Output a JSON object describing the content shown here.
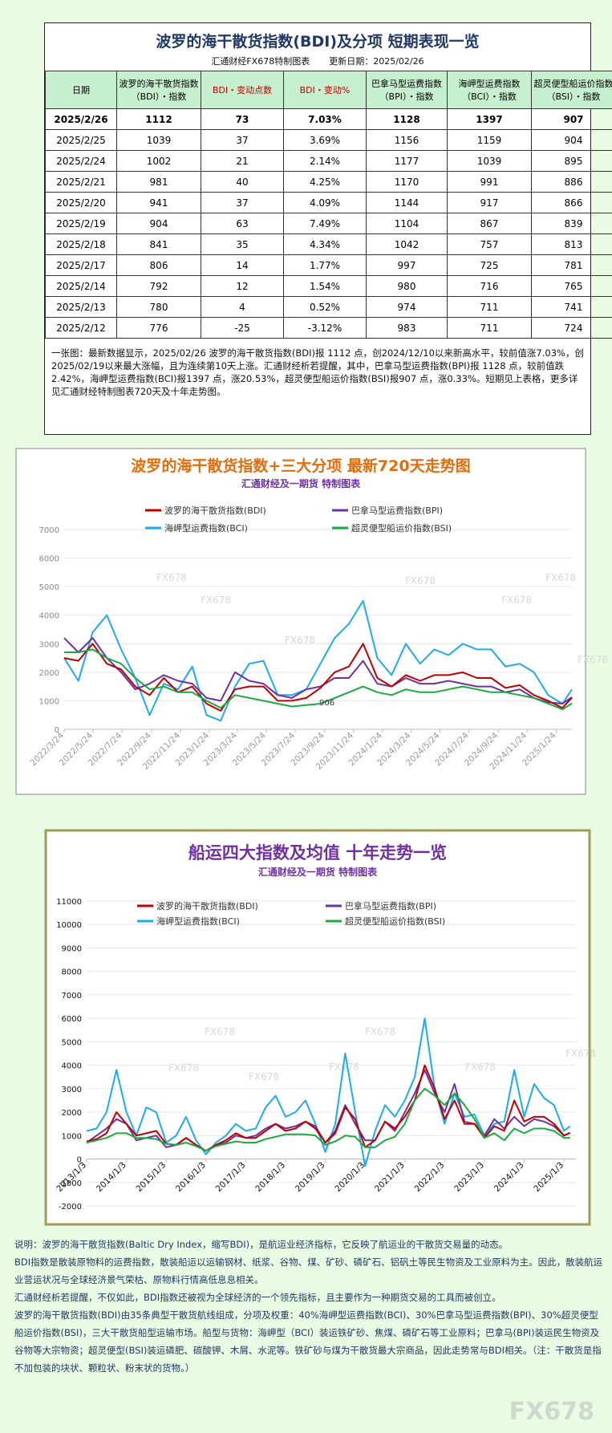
{
  "header": {
    "title": "波罗的海干散货指数(BDI)及分项  短期表现一览",
    "source": "汇通财经FX678特制图表",
    "updated": "更新日期：2025/02/26"
  },
  "table": {
    "header": [
      "日期",
      "波罗的海干散货指数（BDI）・指数",
      "BDI・变动点数",
      "BDI・变动%",
      "巴拿马型运费指数（BPI）・指数",
      "海岬型运费指数（BCI）・指数",
      "超灵便型船运价指数（BSI）・指数"
    ],
    "rows": [
      [
        "2025/2/26",
        "1112",
        "73",
        "7.03%",
        "1128",
        "1397",
        "907"
      ],
      [
        "2025/2/25",
        "1039",
        "37",
        "3.69%",
        "1156",
        "1159",
        "904"
      ],
      [
        "2025/2/24",
        "1002",
        "21",
        "2.14%",
        "1177",
        "1039",
        "895"
      ],
      [
        "2025/2/21",
        "981",
        "40",
        "4.25%",
        "1170",
        "991",
        "886"
      ],
      [
        "2025/2/20",
        "941",
        "37",
        "4.09%",
        "1144",
        "917",
        "866"
      ],
      [
        "2025/2/19",
        "904",
        "63",
        "7.49%",
        "1104",
        "867",
        "839"
      ],
      [
        "2025/2/18",
        "841",
        "35",
        "4.34%",
        "1042",
        "757",
        "813"
      ],
      [
        "2025/2/17",
        "806",
        "14",
        "1.77%",
        "997",
        "725",
        "781"
      ],
      [
        "2025/2/14",
        "792",
        "12",
        "1.54%",
        "980",
        "716",
        "765"
      ],
      [
        "2025/2/13",
        "780",
        "4",
        "0.52%",
        "974",
        "711",
        "741"
      ],
      [
        "2025/2/12",
        "776",
        "-25",
        "-3.12%",
        "983",
        "711",
        "724"
      ]
    ]
  },
  "summary": "一张图：最新数据显示，2025/02/26 波罗的海干散货指数(BDI)报 1112 点，创2024/12/10以来新高水平，较前值涨7.03%，创2025/02/19以来最大涨幅，且为连续第10天上涨。汇通财经析若提醒，其中，巴拿马型运费指数(BPI)报 1128 点，较前值跌2.42%，海岬型运费指数(BCI)报1397 点，涨20.53%，超灵便型船运价指数(BSI)报907 点，涨0.33%。短期见上表格，更多详见汇通财经特制图表720天及十年走势图。",
  "chart_data": [
    {
      "type": "line",
      "title": "波罗的海干散货指数+三大分项  最新720天走势图",
      "subtitle": "汇通财经及一期货  特制图表",
      "annotation": "906",
      "watermarks": [
        "FX678",
        "FX678",
        "FX678",
        "FX678",
        "FX678",
        "FX678",
        "FX678"
      ],
      "x": [
        0,
        30,
        60,
        90,
        120,
        150,
        180,
        210,
        240,
        270,
        300,
        330,
        360,
        390,
        420,
        450,
        480,
        510,
        540,
        570,
        600,
        630,
        660,
        690,
        720,
        750,
        780,
        810,
        840,
        870,
        900,
        930,
        960,
        990,
        1020,
        1050,
        1070
      ],
      "xlim": [
        0,
        1070
      ],
      "xticks": [
        {
          "value": 0,
          "label": "2022/3/24"
        },
        {
          "value": 61,
          "label": "2022/5/24"
        },
        {
          "value": 122,
          "label": "2022/7/24"
        },
        {
          "value": 184,
          "label": "2022/9/24"
        },
        {
          "value": 245,
          "label": "2022/11/24"
        },
        {
          "value": 306,
          "label": "2023/1/24"
        },
        {
          "value": 365,
          "label": "2023/3/24"
        },
        {
          "value": 426,
          "label": "2023/5/24"
        },
        {
          "value": 487,
          "label": "2023/7/24"
        },
        {
          "value": 549,
          "label": "2023/9/24"
        },
        {
          "value": 610,
          "label": "2023/11/24"
        },
        {
          "value": 671,
          "label": "2024/1/24"
        },
        {
          "value": 731,
          "label": "2024/3/24"
        },
        {
          "value": 792,
          "label": "2024/5/24"
        },
        {
          "value": 853,
          "label": "2024/7/24"
        },
        {
          "value": 915,
          "label": "2024/9/24"
        },
        {
          "value": 976,
          "label": "2024/11/24"
        },
        {
          "value": 1037,
          "label": "2025/1/24"
        }
      ],
      "ylim": [
        0,
        7000
      ],
      "yticks": [
        0,
        1000,
        2000,
        3000,
        4000,
        5000,
        6000,
        7000
      ],
      "grid": true,
      "series": [
        {
          "name": "波罗的海干散货指数(BDI)",
          "color": "#c00000",
          "values": [
            2500,
            2400,
            3000,
            2300,
            2100,
            1500,
            1200,
            1800,
            1300,
            1500,
            900,
            650,
            1400,
            1500,
            1500,
            1000,
            1000,
            1100,
            1450,
            2000,
            2200,
            3000,
            1800,
            1500,
            1900,
            1700,
            1900,
            1900,
            2000,
            1800,
            1800,
            1450,
            1550,
            1200,
            1000,
            750,
            1112
          ]
        },
        {
          "name": "巴拿马型运费指数(BPI)",
          "color": "#7030a0",
          "values": [
            3200,
            2700,
            3200,
            2500,
            2000,
            1400,
            1600,
            1900,
            1700,
            1600,
            1100,
            1000,
            2000,
            1700,
            1600,
            1200,
            1100,
            1400,
            1500,
            1800,
            1800,
            2400,
            1600,
            1500,
            1800,
            1600,
            1600,
            1700,
            1600,
            1500,
            1500,
            1300,
            1400,
            1100,
            950,
            900,
            1128
          ]
        },
        {
          "name": "海岬型运费指数(BCI)",
          "color": "#1eaaf0",
          "values": [
            2500,
            1700,
            3400,
            4000,
            2800,
            1800,
            500,
            1600,
            1400,
            2200,
            500,
            300,
            1500,
            2300,
            2400,
            1200,
            1200,
            1400,
            2300,
            3200,
            3700,
            4500,
            2500,
            1900,
            3000,
            2300,
            2800,
            2600,
            3000,
            2800,
            2800,
            2200,
            2300,
            2000,
            1200,
            900,
            1397
          ]
        },
        {
          "name": "超灵便型船运价指数(BSI)",
          "color": "#1aab40",
          "values": [
            2700,
            2700,
            2800,
            2500,
            2300,
            1800,
            1400,
            1500,
            1300,
            1300,
            1000,
            750,
            1200,
            1100,
            1000,
            900,
            800,
            850,
            900,
            1100,
            1300,
            1500,
            1300,
            1200,
            1400,
            1300,
            1300,
            1400,
            1500,
            1400,
            1300,
            1300,
            1200,
            1100,
            900,
            700,
            907
          ]
        }
      ]
    },
    {
      "type": "line",
      "title": "船运四大指数及均值 十年走势一览",
      "subtitle": "汇通财经及一期货 特制图表",
      "watermarks": [
        "FX678",
        "FX678",
        "FX678",
        "FX678",
        "FX678",
        "FX678",
        "FX678"
      ],
      "x": [
        2013,
        2013.25,
        2013.5,
        2013.75,
        2014,
        2014.25,
        2014.5,
        2014.75,
        2015,
        2015.25,
        2015.5,
        2015.75,
        2016,
        2016.25,
        2016.5,
        2016.75,
        2017,
        2017.25,
        2017.5,
        2017.75,
        2018,
        2018.25,
        2018.5,
        2018.75,
        2019,
        2019.25,
        2019.5,
        2019.75,
        2020,
        2020.25,
        2020.5,
        2020.75,
        2021,
        2021.25,
        2021.5,
        2021.75,
        2022,
        2022.25,
        2022.5,
        2022.75,
        2023,
        2023.25,
        2023.5,
        2023.75,
        2024,
        2024.25,
        2024.5,
        2024.75,
        2025,
        2025.15
      ],
      "xlim": [
        2013,
        2025.3
      ],
      "xticks": [
        {
          "value": 2013,
          "label": "2013/1/3"
        },
        {
          "value": 2014,
          "label": "2014/1/3"
        },
        {
          "value": 2015,
          "label": "2015/1/3"
        },
        {
          "value": 2016,
          "label": "2016/1/3"
        },
        {
          "value": 2017,
          "label": "2017/1/3"
        },
        {
          "value": 2018,
          "label": "2018/1/3"
        },
        {
          "value": 2019,
          "label": "2019/1/3"
        },
        {
          "value": 2020,
          "label": "2020/1/3"
        },
        {
          "value": 2021,
          "label": "2021/1/3"
        },
        {
          "value": 2022,
          "label": "2022/1/3"
        },
        {
          "value": 2023,
          "label": "2023/1/3"
        },
        {
          "value": 2024,
          "label": "2024/1/3"
        },
        {
          "value": 2025,
          "label": "2025/1/3"
        }
      ],
      "ylim": [
        -2000,
        11000
      ],
      "yticks": [
        -2000,
        -1000,
        0,
        1000,
        2000,
        3000,
        4000,
        5000,
        6000,
        7000,
        8000,
        9000,
        10000,
        11000
      ],
      "grid": true,
      "series": [
        {
          "name": "波罗的海干散货指数(BDI)",
          "color": "#c00000",
          "values": [
            750,
            850,
            1100,
            2000,
            1500,
            1000,
            1100,
            1200,
            650,
            600,
            900,
            600,
            350,
            600,
            800,
            1100,
            900,
            900,
            1200,
            1500,
            1200,
            1300,
            1600,
            1300,
            700,
            1100,
            2200,
            1700,
            500,
            800,
            1600,
            1300,
            1800,
            2500,
            4000,
            3000,
            1700,
            2500,
            1500,
            1500,
            900,
            1400,
            1200,
            2500,
            1600,
            1800,
            1800,
            1500,
            1000,
            1112
          ]
        },
        {
          "name": "巴拿马型运费指数(BPI)",
          "color": "#7030a0",
          "values": [
            700,
            1000,
            1300,
            1700,
            1500,
            800,
            900,
            1000,
            500,
            600,
            900,
            600,
            350,
            600,
            700,
            1000,
            900,
            1000,
            1300,
            1500,
            1300,
            1400,
            1600,
            1400,
            700,
            1200,
            2300,
            1500,
            800,
            800,
            1600,
            1200,
            2000,
            2800,
            3800,
            2800,
            2000,
            3200,
            1600,
            1500,
            1000,
            1700,
            1300,
            1800,
            1400,
            1700,
            1600,
            1400,
            1000,
            1128
          ]
        },
        {
          "name": "海岬型运费指数(BCI)",
          "color": "#1eaaf0",
          "values": [
            1200,
            1300,
            2000,
            3800,
            2000,
            1000,
            2200,
            2000,
            700,
            1000,
            1800,
            800,
            200,
            700,
            1000,
            1500,
            1200,
            1300,
            2200,
            2700,
            1800,
            2000,
            2500,
            1500,
            300,
            1500,
            4500,
            2000,
            -300,
            1200,
            2300,
            1800,
            2500,
            3500,
            6000,
            3000,
            1500,
            2800,
            1800,
            1900,
            1000,
            1500,
            1600,
            3800,
            1800,
            3200,
            2600,
            2300,
            1200,
            1397
          ]
        },
        {
          "name": "超灵便型船运价指数(BSI)",
          "color": "#1aab40",
          "values": [
            700,
            800,
            900,
            1100,
            1100,
            900,
            900,
            850,
            650,
            600,
            700,
            550,
            350,
            550,
            650,
            750,
            700,
            700,
            850,
            950,
            1050,
            1050,
            1050,
            1000,
            600,
            750,
            1000,
            950,
            500,
            500,
            800,
            950,
            1500,
            2500,
            3000,
            2700,
            2300,
            2800,
            2300,
            1700,
            900,
            1100,
            800,
            1300,
            1100,
            1300,
            1300,
            1200,
            900,
            907
          ]
        }
      ]
    }
  ],
  "notes": [
    "说明：波罗的海干散货指数(Baltic Dry Index，缩写BDI)，是航运业经济指标，它反映了航运业的干散货交易量的动态。",
    "BDI指数是散装原物料的运费指数，散装船运以运输钢材、纸浆、谷物、煤、矿砂、磷矿石、铝矾土等民生物资及工业原料为主。因此，散装航运业营运状况与全球经济景气荣枯、原物料行情高低息息相关。",
    "汇通财经析若提醒，不仅如此，BDI指数还被视为全球经济的一个领先指标，且主要作为一种期货交易的工具而被创立。",
    "波罗的海干散货指数(BDI)由35条典型干散货航线组成，分项及权重：40%海岬型运费指数(BCI)、30%巴拿马型运费指数(BPI)、30%超灵便型船运价指数(BSI)，三大干散货船型运输市场。船型与货物：海岬型（BCI）装运铁矿砂、焦煤、磷矿石等工业原料；巴拿马(BPI)装运民生物资及谷物等大宗物资；超灵便型(BSI)装运磷肥、碳酸钾、木屑、水泥等。铁矿砂与煤为干散货最大宗商品，因此走势常与BDI相关。（注：干散货是指不加包装的块状、颗粒状、粉末状的货物。）"
  ],
  "watermark": "FX678"
}
